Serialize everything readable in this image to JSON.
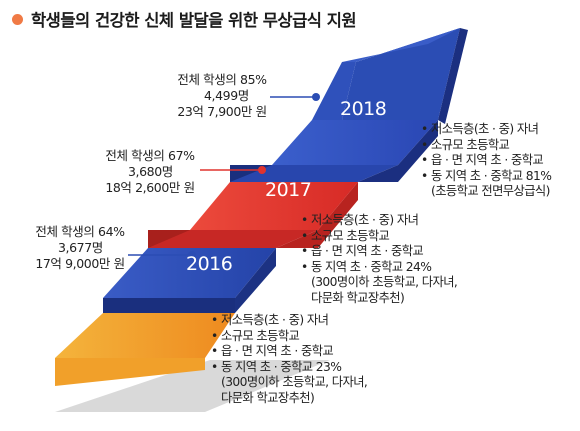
{
  "title": "학생들의 건강한 신체 발달을 위한 무상급식 지원",
  "colors": {
    "orange": "#f4a52a",
    "blue": "#2b4db4",
    "red": "#e0332e",
    "title_dot": "#f07a45"
  },
  "steps": [
    {
      "year": "2016",
      "info": [
        "전체 학생의 64%",
        "3,677명",
        "17억 9,000만 원"
      ],
      "bullets": [
        "• 저소득층(초 · 중) 자녀",
        "• 소규모 초등학교",
        "• 읍 · 면 지역 초 · 중학교",
        "• 동 지역 초 · 중학교 23%",
        "(300명이하 초등학교, 다자녀,",
        "다문화 학교장추천)"
      ]
    },
    {
      "year": "2017",
      "info": [
        "전체 학생의 67%",
        "3,680명",
        "18억 2,600만 원"
      ],
      "bullets": [
        "• 저소득층(초 · 중) 자녀",
        "• 소규모 초등학교",
        "• 읍 · 면 지역 초 · 중학교",
        "• 동 지역 초 · 중학교 24%",
        "(300명이하 초등학교, 다자녀,",
        "다문화 학교장추천)"
      ]
    },
    {
      "year": "2018",
      "info": [
        "전체 학생의 85%",
        "4,499명",
        "23억 7,900만 원"
      ],
      "bullets": [
        "• 저소득층(초 · 중) 자녀",
        "• 소규모 초등학교",
        "• 읍 · 면 지역 초 · 중학교",
        "• 동 지역 초 · 중학교 81%",
        "(초등학교 전면무상급식)"
      ]
    }
  ]
}
